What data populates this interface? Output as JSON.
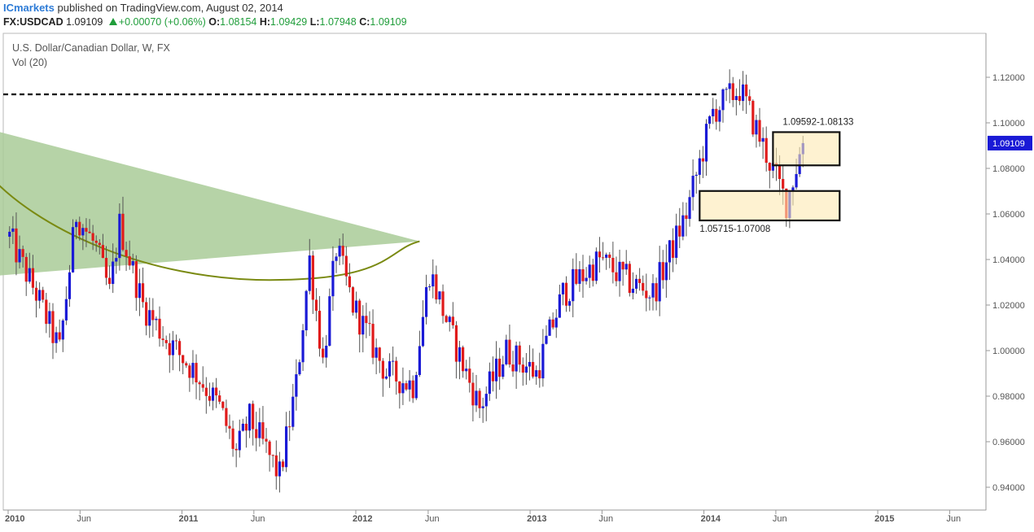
{
  "header": {
    "publisher": "ICmarkets",
    "published_text": "published on TradingView.com, August 02, 2014",
    "symbol": "FX:USDCAD",
    "last": "1.09109",
    "change": "+0.00070 (+0.06%)",
    "o_label": "O:",
    "o": "1.08154",
    "h_label": "H:",
    "h": "1.09429",
    "l_label": "L:",
    "l": "1.07948",
    "c_label": "C:",
    "c": "1.09109"
  },
  "legend": {
    "title": "U.S. Dollar/Canadian Dollar, W, FX",
    "vol": "Vol (20)"
  },
  "colors": {
    "up": "#1a1ad6",
    "down": "#e01b1b",
    "wick": "#555555",
    "zone_fill": "#fde9b2",
    "zone_stroke": "#111111",
    "triangle_fill": "#a9cb98",
    "curve": "#7a8a12",
    "price_label_bg": "#1a1ad6",
    "axis_text": "#555555"
  },
  "chart_data": {
    "type": "candlestick",
    "timeframe": "W",
    "ylim": [
      0.93,
      1.13
    ],
    "y_ticks": [
      "1.12000",
      "1.10000",
      "1.08000",
      "1.06000",
      "1.04000",
      "1.02000",
      "1.00000",
      "0.98000",
      "0.96000",
      "0.94000"
    ],
    "x_labels": [
      "2010",
      "Jun",
      "2011",
      "Jun",
      "2012",
      "Jun",
      "2013",
      "Jun",
      "2014",
      "Jun",
      "2015",
      "Jun"
    ],
    "last_price_label": "1.09109",
    "resistance_level": 1.1125,
    "zones": [
      {
        "label": "1.09592-1.08133",
        "high": 1.09592,
        "low": 1.08133,
        "start": "2014-05-26",
        "end": "2014-10-13"
      },
      {
        "label": "1.05715-1.07008",
        "high": 1.07008,
        "low": 1.05715,
        "start": "2013-12-23",
        "end": "2014-10-13"
      }
    ],
    "anchors": [
      {
        "t": "2010-01-04",
        "p": 1.05
      },
      {
        "t": "2010-01-25",
        "p": 1.04
      },
      {
        "t": "2010-03-01",
        "p": 1.025
      },
      {
        "t": "2010-04-19",
        "p": 1.0
      },
      {
        "t": "2010-05-24",
        "p": 1.06
      },
      {
        "t": "2010-07-05",
        "p": 1.045
      },
      {
        "t": "2010-08-02",
        "p": 1.025
      },
      {
        "t": "2010-08-23",
        "p": 1.055
      },
      {
        "t": "2010-10-11",
        "p": 1.02
      },
      {
        "t": "2010-11-29",
        "p": 1.005
      },
      {
        "t": "2011-01-31",
        "p": 0.99
      },
      {
        "t": "2011-03-21",
        "p": 0.975
      },
      {
        "t": "2011-04-25",
        "p": 0.955
      },
      {
        "t": "2011-05-23",
        "p": 0.97
      },
      {
        "t": "2011-07-25",
        "p": 0.945
      },
      {
        "t": "2011-08-29",
        "p": 0.985
      },
      {
        "t": "2011-09-26",
        "p": 1.04
      },
      {
        "t": "2011-10-24",
        "p": 0.995
      },
      {
        "t": "2011-11-21",
        "p": 1.045
      },
      {
        "t": "2011-12-26",
        "p": 1.02
      },
      {
        "t": "2012-03-05",
        "p": 0.99
      },
      {
        "t": "2012-04-30",
        "p": 0.985
      },
      {
        "t": "2012-06-04",
        "p": 1.035
      },
      {
        "t": "2012-07-23",
        "p": 1.005
      },
      {
        "t": "2012-09-17",
        "p": 0.975
      },
      {
        "t": "2012-11-12",
        "p": 1.0
      },
      {
        "t": "2013-01-14",
        "p": 0.99
      },
      {
        "t": "2013-03-11",
        "p": 1.025
      },
      {
        "t": "2013-05-27",
        "p": 1.04
      },
      {
        "t": "2013-07-29",
        "p": 1.03
      },
      {
        "t": "2013-09-16",
        "p": 1.025
      },
      {
        "t": "2013-11-25",
        "p": 1.06
      },
      {
        "t": "2014-01-20",
        "p": 1.105
      },
      {
        "t": "2014-03-17",
        "p": 1.115
      },
      {
        "t": "2014-05-05",
        "p": 1.09
      },
      {
        "t": "2014-06-23",
        "p": 1.065
      },
      {
        "t": "2014-07-28",
        "p": 1.09109
      }
    ],
    "annotations": [
      {
        "type": "triangle",
        "points": [
          [
            "2009-11-16",
            1.0975
          ],
          [
            "2012-05-14",
            1.048
          ],
          [
            "2009-11-16",
            1.0325
          ]
        ]
      },
      {
        "type": "arc",
        "from": [
          "2009-11-16",
          1.0785
        ],
        "to": [
          "2012-05-14",
          1.048
        ],
        "bottom": [
          "2011-07-04",
          1.031
        ]
      }
    ]
  }
}
